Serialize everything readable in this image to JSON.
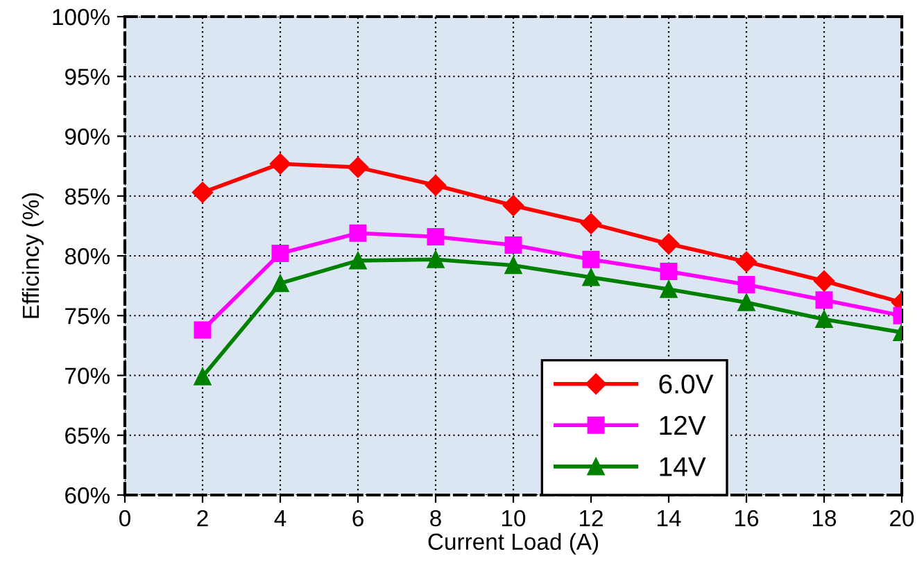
{
  "chart_data": {
    "type": "line",
    "xlabel": "Current Load (A)",
    "ylabel": "Efficincy (%)",
    "x": [
      2,
      4,
      6,
      8,
      10,
      12,
      14,
      16,
      18,
      20
    ],
    "series": [
      {
        "name": "6.0V",
        "color": "#ff0000",
        "marker": "diamond",
        "values": [
          85.3,
          87.7,
          87.4,
          85.9,
          84.2,
          82.7,
          81.0,
          79.5,
          77.9,
          76.1
        ]
      },
      {
        "name": "12V",
        "color": "#ff00ff",
        "marker": "square",
        "values": [
          73.8,
          80.2,
          81.9,
          81.6,
          80.9,
          79.7,
          78.7,
          77.6,
          76.3,
          75.0
        ]
      },
      {
        "name": "14V",
        "color": "#008000",
        "marker": "triangle",
        "values": [
          69.9,
          77.7,
          79.6,
          79.7,
          79.2,
          78.2,
          77.2,
          76.1,
          74.7,
          73.6
        ]
      }
    ],
    "xlim": [
      0,
      20
    ],
    "xticks": [
      0,
      2,
      4,
      6,
      8,
      10,
      12,
      14,
      16,
      18,
      20
    ],
    "ylim": [
      60,
      100
    ],
    "yticks": [
      {
        "value": 60,
        "label": "60%"
      },
      {
        "value": 65,
        "label": "65%"
      },
      {
        "value": 70,
        "label": "70%"
      },
      {
        "value": 75,
        "label": "75%"
      },
      {
        "value": 80,
        "label": "80%"
      },
      {
        "value": 85,
        "label": "85%"
      },
      {
        "value": 90,
        "label": "90%"
      },
      {
        "value": 95,
        "label": "95%"
      },
      {
        "value": 100,
        "label": "100%"
      }
    ],
    "grid": true,
    "legend": "bottom right",
    "line_style": "solid"
  }
}
